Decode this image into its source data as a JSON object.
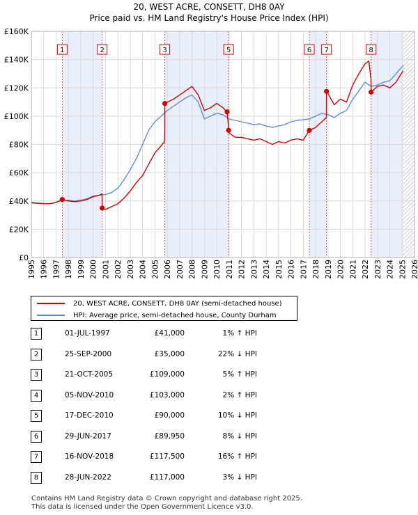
{
  "chart_data": {
    "type": "line",
    "title": "20, WEST ACRE, CONSETT, DH8 0AY",
    "subtitle": "Price paid vs. HM Land Registry's House Price Index (HPI)",
    "xlim": [
      1995,
      2026
    ],
    "ylim": [
      0,
      160000
    ],
    "x_ticks": [
      1995,
      1996,
      1997,
      1998,
      1999,
      2000,
      2001,
      2002,
      2003,
      2004,
      2005,
      2006,
      2007,
      2008,
      2009,
      2010,
      2011,
      2012,
      2013,
      2014,
      2015,
      2016,
      2017,
      2018,
      2019,
      2020,
      2021,
      2022,
      2023,
      2024,
      2025,
      2026
    ],
    "y_ticks": [
      0,
      20000,
      40000,
      60000,
      80000,
      100000,
      120000,
      140000,
      160000
    ],
    "y_tick_labels": [
      "£0",
      "£20K",
      "£40K",
      "£60K",
      "£80K",
      "£100K",
      "£120K",
      "£140K",
      "£160K"
    ],
    "grid": true,
    "shaded_periods": [
      [
        1997.5,
        2000.73
      ],
      [
        2005.8,
        2010.96
      ],
      [
        2017.49,
        2018.88
      ],
      [
        2022.49,
        2025.1
      ]
    ],
    "forecast_start": 2025.1,
    "series": [
      {
        "name": "20, WEST ACRE, CONSETT, DH8 0AY (semi-detached house)",
        "color": "#cc0000",
        "points": [
          [
            1995.0,
            39000
          ],
          [
            1995.5,
            38500
          ],
          [
            1996.0,
            38200
          ],
          [
            1996.5,
            38000
          ],
          [
            1997.0,
            39000
          ],
          [
            1997.5,
            41000
          ],
          [
            1998.0,
            40000
          ],
          [
            1998.5,
            39500
          ],
          [
            1999.0,
            40000
          ],
          [
            1999.5,
            41000
          ],
          [
            2000.0,
            43000
          ],
          [
            2000.5,
            44000
          ],
          [
            2000.72,
            45000
          ],
          [
            2000.73,
            35000
          ],
          [
            2001.0,
            34000
          ],
          [
            2001.5,
            36000
          ],
          [
            2002.0,
            38000
          ],
          [
            2002.5,
            42000
          ],
          [
            2003.0,
            47000
          ],
          [
            2003.5,
            53000
          ],
          [
            2004.0,
            58000
          ],
          [
            2004.5,
            66000
          ],
          [
            2005.0,
            74000
          ],
          [
            2005.5,
            79000
          ],
          [
            2005.79,
            82000
          ],
          [
            2005.8,
            109000
          ],
          [
            2006.5,
            112000
          ],
          [
            2007.0,
            115000
          ],
          [
            2007.5,
            118000
          ],
          [
            2008.0,
            121000
          ],
          [
            2008.5,
            115000
          ],
          [
            2009.0,
            104000
          ],
          [
            2009.5,
            106000
          ],
          [
            2010.0,
            109000
          ],
          [
            2010.5,
            106000
          ],
          [
            2010.84,
            103000
          ],
          [
            2010.95,
            93000
          ],
          [
            2010.96,
            90000
          ],
          [
            2011.0,
            88000
          ],
          [
            2011.5,
            85000
          ],
          [
            2012.0,
            85000
          ],
          [
            2012.5,
            84000
          ],
          [
            2013.0,
            83000
          ],
          [
            2013.5,
            84000
          ],
          [
            2014.0,
            82000
          ],
          [
            2014.5,
            80000
          ],
          [
            2015.0,
            82000
          ],
          [
            2015.5,
            81000
          ],
          [
            2016.0,
            83000
          ],
          [
            2016.5,
            84000
          ],
          [
            2017.0,
            83000
          ],
          [
            2017.49,
            89950
          ],
          [
            2018.0,
            92000
          ],
          [
            2018.5,
            96000
          ],
          [
            2018.87,
            99000
          ],
          [
            2018.88,
            117500
          ],
          [
            2019.0,
            116000
          ],
          [
            2019.5,
            108000
          ],
          [
            2020.0,
            112000
          ],
          [
            2020.5,
            110000
          ],
          [
            2021.0,
            122000
          ],
          [
            2021.5,
            130000
          ],
          [
            2022.0,
            137000
          ],
          [
            2022.3,
            139000
          ],
          [
            2022.48,
            126000
          ],
          [
            2022.49,
            117000
          ],
          [
            2023.0,
            121000
          ],
          [
            2023.5,
            122000
          ],
          [
            2024.0,
            120000
          ],
          [
            2024.5,
            124000
          ],
          [
            2025.0,
            131000
          ],
          [
            2025.1,
            132000
          ]
        ]
      },
      {
        "name": "HPI: Average price, semi-detached house, County Durham",
        "color": "#5b8fd0",
        "points": [
          [
            1995.0,
            38500
          ],
          [
            1995.5,
            38200
          ],
          [
            1996.0,
            38000
          ],
          [
            1996.5,
            38200
          ],
          [
            1997.0,
            39000
          ],
          [
            1997.5,
            40500
          ],
          [
            1998.0,
            40500
          ],
          [
            1998.5,
            40000
          ],
          [
            1999.0,
            40500
          ],
          [
            1999.5,
            41500
          ],
          [
            2000.0,
            43500
          ],
          [
            2000.5,
            44000
          ],
          [
            2001.0,
            44500
          ],
          [
            2001.5,
            46000
          ],
          [
            2002.0,
            49000
          ],
          [
            2002.5,
            55000
          ],
          [
            2003.0,
            62000
          ],
          [
            2003.5,
            70000
          ],
          [
            2004.0,
            80000
          ],
          [
            2004.5,
            90000
          ],
          [
            2005.0,
            96000
          ],
          [
            2005.5,
            100000
          ],
          [
            2006.0,
            104000
          ],
          [
            2006.5,
            107000
          ],
          [
            2007.0,
            110000
          ],
          [
            2007.5,
            113000
          ],
          [
            2008.0,
            115000
          ],
          [
            2008.5,
            110000
          ],
          [
            2009.0,
            98000
          ],
          [
            2009.5,
            100000
          ],
          [
            2010.0,
            102000
          ],
          [
            2010.5,
            101000
          ],
          [
            2011.0,
            98000
          ],
          [
            2011.5,
            97000
          ],
          [
            2012.0,
            96000
          ],
          [
            2012.5,
            95000
          ],
          [
            2013.0,
            94000
          ],
          [
            2013.5,
            94500
          ],
          [
            2014.0,
            93000
          ],
          [
            2014.5,
            92000
          ],
          [
            2015.0,
            93000
          ],
          [
            2015.5,
            94000
          ],
          [
            2016.0,
            96000
          ],
          [
            2016.5,
            97000
          ],
          [
            2017.0,
            97500
          ],
          [
            2017.5,
            98000
          ],
          [
            2018.0,
            100000
          ],
          [
            2018.5,
            102000
          ],
          [
            2019.0,
            101000
          ],
          [
            2019.5,
            99000
          ],
          [
            2020.0,
            102000
          ],
          [
            2020.5,
            104000
          ],
          [
            2021.0,
            112000
          ],
          [
            2021.5,
            118000
          ],
          [
            2022.0,
            124000
          ],
          [
            2022.5,
            121000
          ],
          [
            2023.0,
            122000
          ],
          [
            2023.5,
            124000
          ],
          [
            2024.0,
            125000
          ],
          [
            2024.5,
            130000
          ],
          [
            2025.0,
            135000
          ],
          [
            2025.1,
            136000
          ]
        ]
      }
    ],
    "markers": [
      {
        "label": "1",
        "x": 1997.5,
        "y": 41000
      },
      {
        "label": "2",
        "x": 2000.73,
        "y": 35000
      },
      {
        "label": "3",
        "x": 2005.8,
        "y": 109000
      },
      {
        "label": "4",
        "x": 2010.84,
        "y": 103000
      },
      {
        "label": "5",
        "x": 2010.96,
        "y": 90000
      },
      {
        "label": "6",
        "x": 2017.49,
        "y": 89950
      },
      {
        "label": "7",
        "x": 2018.88,
        "y": 117500
      },
      {
        "label": "8",
        "x": 2022.49,
        "y": 117000
      }
    ],
    "marker_box_labels": [
      "1",
      "2",
      "3",
      "5",
      "6",
      "7",
      "8"
    ]
  },
  "legend": {
    "property_label": "20, WEST ACRE, CONSETT, DH8 0AY (semi-detached house)",
    "hpi_label": "HPI: Average price, semi-detached house, County Durham",
    "property_color": "#cc0000",
    "hpi_color": "#5b8fd0"
  },
  "transactions": [
    {
      "num": "1",
      "date": "01-JUL-1997",
      "price": "£41,000",
      "hpi": "1% ↑ HPI"
    },
    {
      "num": "2",
      "date": "25-SEP-2000",
      "price": "£35,000",
      "hpi": "22% ↓ HPI"
    },
    {
      "num": "3",
      "date": "21-OCT-2005",
      "price": "£109,000",
      "hpi": "5% ↑ HPI"
    },
    {
      "num": "4",
      "date": "05-NOV-2010",
      "price": "£103,000",
      "hpi": "2% ↑ HPI"
    },
    {
      "num": "5",
      "date": "17-DEC-2010",
      "price": "£90,000",
      "hpi": "10% ↓ HPI"
    },
    {
      "num": "6",
      "date": "29-JUN-2017",
      "price": "£89,950",
      "hpi": "8% ↓ HPI"
    },
    {
      "num": "7",
      "date": "16-NOV-2018",
      "price": "£117,500",
      "hpi": "16% ↑ HPI"
    },
    {
      "num": "8",
      "date": "28-JUN-2022",
      "price": "£117,000",
      "hpi": "3% ↓ HPI"
    }
  ],
  "footer": {
    "line1": "Contains HM Land Registry data © Crown copyright and database right 2025.",
    "line2": "This data is licensed under the Open Government Licence v3.0."
  }
}
